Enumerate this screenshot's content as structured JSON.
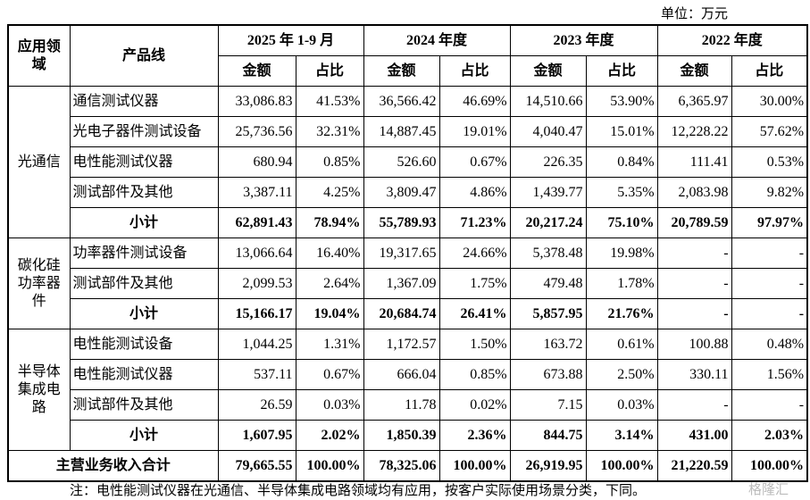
{
  "unit": "单位：万元",
  "header": {
    "domain": "应用领域",
    "product_line": "产品线",
    "periods": [
      "2025 年 1-9 月",
      "2024 年度",
      "2023 年度",
      "2022 年度"
    ],
    "columns": [
      "金额",
      "占比",
      "金额",
      "占比",
      "金额",
      "占比",
      "金额",
      "占比"
    ]
  },
  "groups": [
    {
      "domain": "光通信",
      "rows": [
        {
          "product": "通信测试仪器",
          "values": [
            "33,086.83",
            "41.53%",
            "36,566.42",
            "46.69%",
            "14,510.66",
            "53.90%",
            "6,365.97",
            "30.00%"
          ]
        },
        {
          "product": "光电子器件测试设备",
          "values": [
            "25,736.56",
            "32.31%",
            "14,887.45",
            "19.01%",
            "4,040.47",
            "15.01%",
            "12,228.22",
            "57.62%"
          ]
        },
        {
          "product": "电性能测试仪器",
          "values": [
            "680.94",
            "0.85%",
            "526.60",
            "0.67%",
            "226.35",
            "0.84%",
            "111.41",
            "0.53%"
          ]
        },
        {
          "product": "测试部件及其他",
          "values": [
            "3,387.11",
            "4.25%",
            "3,809.47",
            "4.86%",
            "1,439.77",
            "5.35%",
            "2,083.98",
            "9.82%"
          ]
        }
      ],
      "subtotal": {
        "label": "小计",
        "values": [
          "62,891.43",
          "78.94%",
          "55,789.93",
          "71.23%",
          "20,217.24",
          "75.10%",
          "20,789.59",
          "97.97%"
        ]
      }
    },
    {
      "domain": "碳化硅功率器件",
      "rows": [
        {
          "product": "功率器件测试设备",
          "values": [
            "13,066.64",
            "16.40%",
            "19,317.65",
            "24.66%",
            "5,378.48",
            "19.98%",
            "-",
            "-"
          ]
        },
        {
          "product": "测试部件及其他",
          "values": [
            "2,099.53",
            "2.64%",
            "1,367.09",
            "1.75%",
            "479.48",
            "1.78%",
            "-",
            "-"
          ]
        }
      ],
      "subtotal": {
        "label": "小计",
        "values": [
          "15,166.17",
          "19.04%",
          "20,684.74",
          "26.41%",
          "5,857.95",
          "21.76%",
          "-",
          "-"
        ]
      }
    },
    {
      "domain": "半导体集成电路",
      "rows": [
        {
          "product": "电性能测试设备",
          "values": [
            "1,044.25",
            "1.31%",
            "1,172.57",
            "1.50%",
            "163.72",
            "0.61%",
            "100.88",
            "0.48%"
          ]
        },
        {
          "product": "电性能测试仪器",
          "values": [
            "537.11",
            "0.67%",
            "666.04",
            "0.85%",
            "673.88",
            "2.50%",
            "330.11",
            "1.56%"
          ]
        },
        {
          "product": "测试部件及其他",
          "values": [
            "26.59",
            "0.03%",
            "11.78",
            "0.02%",
            "7.15",
            "0.03%",
            "-",
            "-"
          ]
        }
      ],
      "subtotal": {
        "label": "小计",
        "values": [
          "1,607.95",
          "2.02%",
          "1,850.39",
          "2.36%",
          "844.75",
          "3.14%",
          "431.00",
          "2.03%"
        ]
      }
    }
  ],
  "total": {
    "label": "主营业务收入合计",
    "values": [
      "79,665.55",
      "100.00%",
      "78,325.06",
      "100.00%",
      "26,919.95",
      "100.00%",
      "21,220.59",
      "100.00%"
    ]
  },
  "note": "注：电性能测试仪器在光通信、半导体集成电路领域均有应用，按客户实际使用场景分类，下同。",
  "watermark": "格隆汇"
}
